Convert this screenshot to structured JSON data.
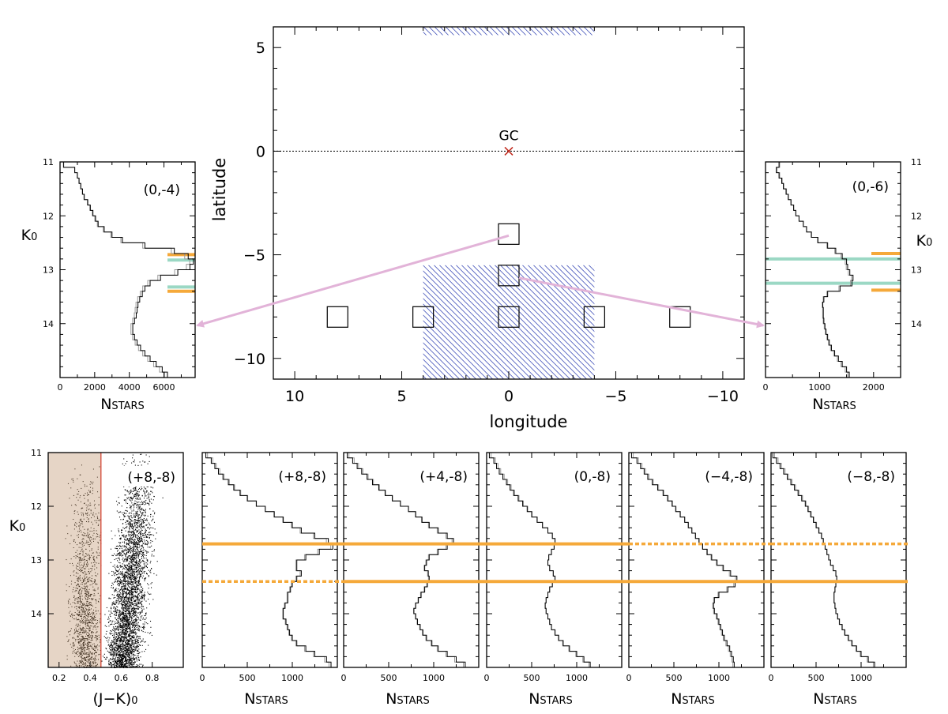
{
  "colors": {
    "orange": "#f5a93a",
    "green": "#9bd8c4",
    "hatch": "#3f4fb8",
    "arrow": "#e2b3d8",
    "gc": "#c0281c",
    "shade": "#e6d5c6"
  },
  "map": {
    "xlabel": "longitude",
    "ylabel": "latitude",
    "xticks": [
      "10",
      "5",
      "0",
      "−5",
      "−10"
    ],
    "yticks": [
      "5",
      "0",
      "−5",
      "−10"
    ],
    "gc_label": "GC"
  },
  "left_panel": {
    "ylabel": "K",
    "ylabel_sub": "0",
    "xlabel": "N",
    "xlabel_sub": "STARS",
    "field": "(0,-4)",
    "yticks": [
      "11",
      "12",
      "13",
      "14"
    ],
    "xticks": [
      "0",
      "2000",
      "4000",
      "6000"
    ]
  },
  "right_panel": {
    "ylabel": "K",
    "ylabel_sub": "0",
    "xlabel": "N",
    "xlabel_sub": "STARS",
    "field": "(0,-6)",
    "yticks": [
      "11",
      "12",
      "13",
      "14"
    ],
    "xticks": [
      "0",
      "1000",
      "2000"
    ]
  },
  "cmd": {
    "ylabel": "K",
    "ylabel_sub": "0",
    "xlabel": "(J−K)",
    "xlabel_sub": "0",
    "field": "(+8,-8)",
    "yticks": [
      "11",
      "12",
      "13",
      "14"
    ],
    "xticks": [
      "0.2",
      "0.4",
      "0.6",
      "0.8"
    ]
  },
  "bottom_panels": [
    {
      "field": "(+8,-8)",
      "xlabel": "N",
      "xlabel_sub": "STARS",
      "xticks": [
        "0",
        "500",
        "1000"
      ]
    },
    {
      "field": "(+4,-8)",
      "xlabel": "N",
      "xlabel_sub": "STARS",
      "xticks": [
        "0",
        "500",
        "1000"
      ]
    },
    {
      "field": "(0,-8)",
      "xlabel": "N",
      "xlabel_sub": "STARS",
      "xticks": [
        "0",
        "500",
        "1000"
      ]
    },
    {
      "field": "(−4,-8)",
      "xlabel": "N",
      "xlabel_sub": "STARS",
      "xticks": [
        "0",
        "500",
        "1000"
      ]
    },
    {
      "field": "(−8,-8)",
      "xlabel": "N",
      "xlabel_sub": "STARS",
      "xticks": [
        "0",
        "500",
        "1000"
      ]
    }
  ],
  "chart_data": [
    {
      "type": "scatter",
      "xlim": [
        11,
        -11
      ],
      "ylim": [
        -11,
        6
      ],
      "galactic_plane_b": 0,
      "gc": {
        "l": 0,
        "b": 0
      },
      "fields": [
        {
          "l": 0,
          "b": -4
        },
        {
          "l": 0,
          "b": -6
        },
        {
          "l": 8,
          "b": -8
        },
        {
          "l": 4,
          "b": -8
        },
        {
          "l": 0,
          "b": -8
        },
        {
          "l": -4,
          "b": -8
        },
        {
          "l": -8,
          "b": -8
        }
      ],
      "hatched_regions": [
        {
          "l_range": [
            4,
            -4
          ],
          "b_range": [
            5.6,
            6
          ]
        },
        {
          "l_range": [
            4,
            -4
          ],
          "b_range": [
            -11,
            -5.5
          ]
        }
      ]
    },
    {
      "type": "line",
      "field": "(0,-4)",
      "xlim": [
        0,
        7800
      ],
      "ylim": [
        11,
        15
      ],
      "K0": [
        11.0,
        11.1,
        11.2,
        11.3,
        11.4,
        11.5,
        11.6,
        11.7,
        11.8,
        11.9,
        12.0,
        12.1,
        12.2,
        12.3,
        12.4,
        12.5,
        12.6,
        12.7,
        12.8,
        12.9,
        13.0,
        13.1,
        13.2,
        13.3,
        13.4,
        13.5,
        13.6,
        13.7,
        13.8,
        13.9,
        14.0,
        14.1,
        14.2,
        14.3,
        14.4,
        14.5,
        14.6,
        14.7,
        14.8,
        14.9,
        15.0
      ],
      "N": [
        200,
        850,
        1000,
        1100,
        1200,
        1300,
        1400,
        1600,
        1750,
        1900,
        2050,
        2200,
        2550,
        3000,
        3600,
        4900,
        6600,
        7400,
        7700,
        7500,
        6800,
        5800,
        5200,
        4900,
        4750,
        4600,
        4500,
        4450,
        4400,
        4300,
        4200,
        4200,
        4300,
        4450,
        4650,
        4900,
        5200,
        5550,
        5900,
        6200,
        6300
      ],
      "red_clump_bright": {
        "K0": 12.72,
        "color": "orange"
      },
      "red_clump_faint": {
        "K0": 13.4,
        "color": "orange"
      },
      "fit_peaks": [
        12.82,
        13.32
      ]
    },
    {
      "type": "line",
      "field": "(0,-6)",
      "xlim": [
        0,
        2500
      ],
      "ylim": [
        11,
        15
      ],
      "K0": [
        11.0,
        11.1,
        11.2,
        11.3,
        11.4,
        11.5,
        11.6,
        11.7,
        11.8,
        11.9,
        12.0,
        12.1,
        12.2,
        12.3,
        12.4,
        12.5,
        12.6,
        12.7,
        12.8,
        12.9,
        13.0,
        13.1,
        13.2,
        13.3,
        13.4,
        13.5,
        13.6,
        13.7,
        13.8,
        13.9,
        14.0,
        14.1,
        14.2,
        14.3,
        14.4,
        14.5,
        14.6,
        14.7,
        14.8,
        14.9,
        15.0
      ],
      "N": [
        250,
        200,
        250,
        300,
        330,
        380,
        420,
        470,
        520,
        560,
        620,
        700,
        760,
        850,
        970,
        1150,
        1300,
        1420,
        1500,
        1520,
        1560,
        1620,
        1600,
        1380,
        1150,
        1080,
        1060,
        1070,
        1070,
        1080,
        1100,
        1120,
        1150,
        1180,
        1220,
        1280,
        1350,
        1420,
        1500,
        1550,
        1600
      ],
      "red_clump_bright": {
        "K0": 12.7,
        "color": "orange"
      },
      "red_clump_faint": {
        "K0": 13.38,
        "color": "orange"
      },
      "fit_peaks": [
        12.8,
        13.25
      ]
    },
    {
      "type": "scatter",
      "field": "(+8,-8)",
      "xlabel": "(J−K)0",
      "ylabel": "K0",
      "xlim": [
        0.13,
        1.0
      ],
      "ylim": [
        11,
        15
      ],
      "color_cut_JK": 0.47,
      "red_giant_clump_center": {
        "JK": 0.67,
        "K0": 12.9
      }
    },
    {
      "type": "line",
      "field": "(+8,-8)",
      "xlim": [
        0,
        1500
      ],
      "ylim": [
        11,
        15
      ],
      "K0": [
        11.0,
        11.1,
        11.2,
        11.3,
        11.4,
        11.5,
        11.6,
        11.7,
        11.8,
        11.9,
        12.0,
        12.1,
        12.2,
        12.3,
        12.4,
        12.5,
        12.6,
        12.7,
        12.8,
        12.9,
        13.0,
        13.1,
        13.2,
        13.3,
        13.4,
        13.5,
        13.6,
        13.7,
        13.8,
        13.9,
        14.0,
        14.1,
        14.2,
        14.3,
        14.4,
        14.5,
        14.6,
        14.7,
        14.8,
        14.9,
        15.0
      ],
      "N": [
        40,
        100,
        140,
        180,
        230,
        290,
        350,
        420,
        500,
        600,
        700,
        800,
        900,
        1000,
        1100,
        1250,
        1400,
        1450,
        1300,
        1150,
        1050,
        1050,
        1100,
        1050,
        1000,
        980,
        950,
        950,
        920,
        900,
        900,
        930,
        950,
        970,
        1000,
        1050,
        1150,
        1250,
        1380,
        1430,
        1450
      ],
      "red_clump_bright": {
        "K0": 12.7,
        "style": "solid"
      },
      "red_clump_faint": {
        "K0": 13.4,
        "style": "dotted"
      }
    },
    {
      "type": "line",
      "field": "(+4,-8)",
      "xlim": [
        0,
        1500
      ],
      "ylim": [
        11,
        15
      ],
      "K0": [
        11.0,
        11.1,
        11.2,
        11.3,
        11.4,
        11.5,
        11.6,
        11.7,
        11.8,
        11.9,
        12.0,
        12.1,
        12.2,
        12.3,
        12.4,
        12.5,
        12.6,
        12.7,
        12.8,
        12.9,
        13.0,
        13.1,
        13.2,
        13.3,
        13.4,
        13.5,
        13.6,
        13.7,
        13.8,
        13.9,
        14.0,
        14.1,
        14.2,
        14.3,
        14.4,
        14.5,
        14.6,
        14.7,
        14.8,
        14.9,
        15.0
      ],
      "N": [
        40,
        100,
        150,
        200,
        260,
        320,
        390,
        460,
        540,
        630,
        720,
        800,
        870,
        950,
        1050,
        1150,
        1220,
        1150,
        1050,
        950,
        920,
        900,
        940,
        950,
        930,
        900,
        860,
        830,
        800,
        780,
        800,
        820,
        850,
        880,
        920,
        980,
        1050,
        1150,
        1250,
        1350,
        1450
      ],
      "red_clump_bright": {
        "K0": 12.7,
        "style": "solid"
      },
      "red_clump_faint": {
        "K0": 13.4,
        "style": "solid"
      }
    },
    {
      "type": "line",
      "field": "(0,-8)",
      "xlim": [
        0,
        1500
      ],
      "ylim": [
        11,
        15
      ],
      "K0": [
        11.0,
        11.1,
        11.2,
        11.3,
        11.4,
        11.5,
        11.6,
        11.7,
        11.8,
        11.9,
        12.0,
        12.1,
        12.2,
        12.3,
        12.4,
        12.5,
        12.6,
        12.7,
        12.8,
        12.9,
        13.0,
        13.1,
        13.2,
        13.3,
        13.4,
        13.5,
        13.6,
        13.7,
        13.8,
        13.9,
        14.0,
        14.1,
        14.2,
        14.3,
        14.4,
        14.5,
        14.6,
        14.7,
        14.8,
        14.9,
        15.0
      ],
      "N": [
        30,
        80,
        110,
        140,
        180,
        220,
        260,
        300,
        350,
        400,
        450,
        500,
        560,
        620,
        680,
        730,
        760,
        750,
        720,
        690,
        680,
        700,
        740,
        760,
        730,
        700,
        680,
        660,
        650,
        660,
        680,
        700,
        720,
        760,
        800,
        850,
        920,
        1000,
        1080,
        1150,
        1200
      ],
      "red_clump_bright": {
        "K0": 12.7,
        "style": "solid"
      },
      "red_clump_faint": {
        "K0": 13.4,
        "style": "solid"
      }
    },
    {
      "type": "line",
      "field": "(−4,-8)",
      "xlim": [
        0,
        1500
      ],
      "ylim": [
        11,
        15
      ],
      "K0": [
        11.0,
        11.1,
        11.2,
        11.3,
        11.4,
        11.5,
        11.6,
        11.7,
        11.8,
        11.9,
        12.0,
        12.1,
        12.2,
        12.3,
        12.4,
        12.5,
        12.6,
        12.7,
        12.8,
        12.9,
        13.0,
        13.1,
        13.2,
        13.3,
        13.4,
        13.5,
        13.6,
        13.7,
        13.8,
        13.9,
        14.0,
        14.1,
        14.2,
        14.3,
        14.4,
        14.5,
        14.6,
        14.7,
        14.8,
        14.9,
        15.0
      ],
      "N": [
        30,
        90,
        130,
        170,
        210,
        260,
        320,
        380,
        430,
        480,
        520,
        570,
        620,
        660,
        700,
        740,
        780,
        820,
        870,
        920,
        980,
        1050,
        1130,
        1200,
        1180,
        1100,
        1000,
        950,
        940,
        950,
        980,
        1000,
        1020,
        1040,
        1060,
        1090,
        1120,
        1140,
        1160,
        1170,
        1180
      ],
      "red_clump_bright": {
        "K0": 12.7,
        "style": "dotted"
      },
      "red_clump_faint": {
        "K0": 13.4,
        "style": "solid"
      }
    },
    {
      "type": "line",
      "field": "(−8,-8)",
      "xlim": [
        0,
        1500
      ],
      "ylim": [
        11,
        15
      ],
      "K0": [
        11.0,
        11.1,
        11.2,
        11.3,
        11.4,
        11.5,
        11.6,
        11.7,
        11.8,
        11.9,
        12.0,
        12.1,
        12.2,
        12.3,
        12.4,
        12.5,
        12.6,
        12.7,
        12.8,
        12.9,
        13.0,
        13.1,
        13.2,
        13.3,
        13.4,
        13.5,
        13.6,
        13.7,
        13.8,
        13.9,
        14.0,
        14.1,
        14.2,
        14.3,
        14.4,
        14.5,
        14.6,
        14.7,
        14.8,
        14.9,
        15.0
      ],
      "N": [
        20,
        60,
        100,
        140,
        180,
        220,
        260,
        300,
        340,
        380,
        410,
        440,
        470,
        500,
        530,
        560,
        580,
        600,
        620,
        640,
        660,
        690,
        720,
        730,
        720,
        710,
        700,
        700,
        710,
        720,
        740,
        760,
        790,
        820,
        860,
        900,
        950,
        1000,
        1080,
        1150,
        1250
      ],
      "red_clump_bright": {
        "K0": 12.7,
        "style": "dotted"
      },
      "red_clump_faint": {
        "K0": 13.4,
        "style": "solid"
      }
    }
  ]
}
